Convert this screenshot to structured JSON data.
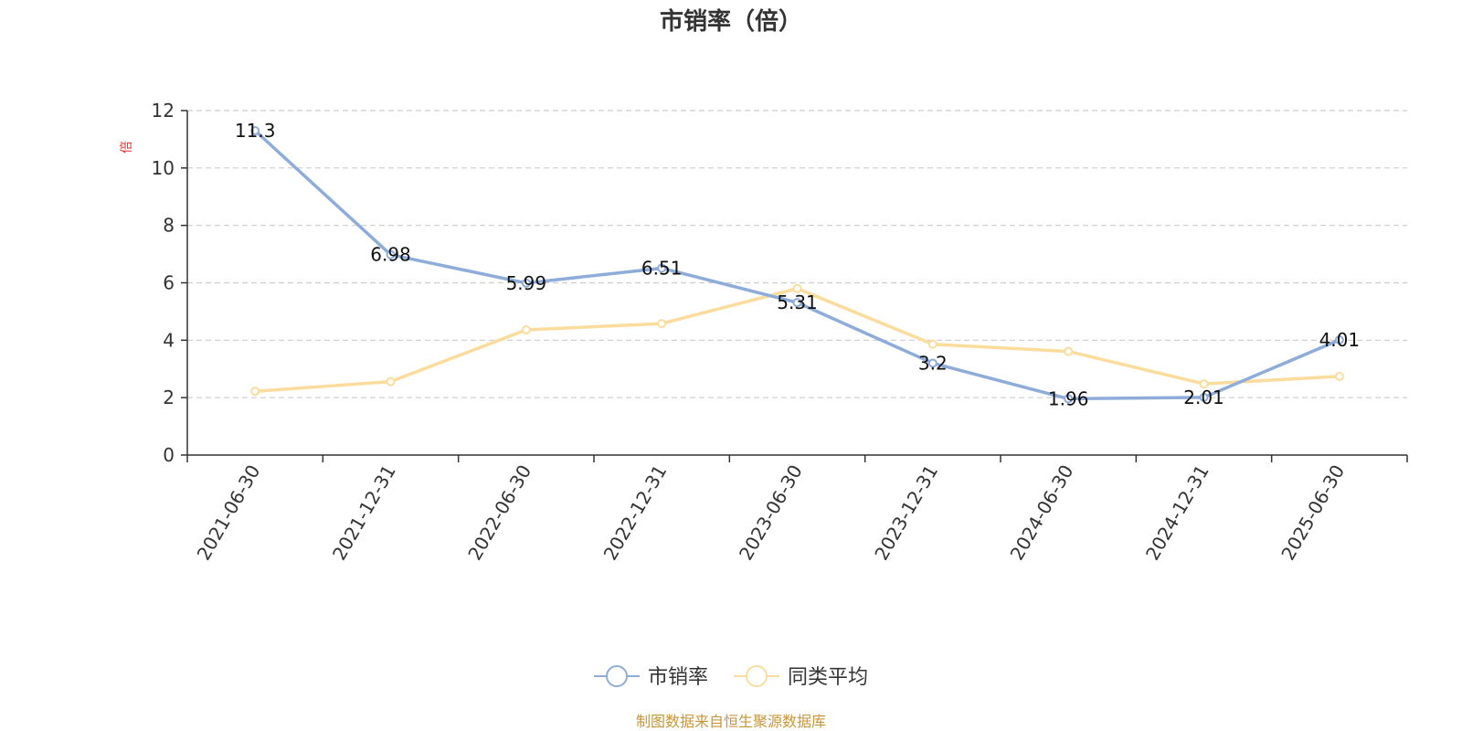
{
  "chart_data": {
    "type": "line",
    "title": "市销率（倍）",
    "ylabel": "倍",
    "ylim": [
      0,
      12
    ],
    "yticks": [
      0,
      2,
      4,
      6,
      8,
      10,
      12
    ],
    "categories": [
      "2021-06-30",
      "2021-12-31",
      "2022-06-30",
      "2022-12-31",
      "2023-06-30",
      "2023-12-31",
      "2024-06-30",
      "2024-12-31",
      "2025-06-30"
    ],
    "series": [
      {
        "name": "市销率",
        "color": "#8eacd9",
        "values": [
          11.3,
          6.98,
          5.99,
          6.51,
          5.31,
          3.2,
          1.96,
          2.01,
          4.01
        ],
        "labels": [
          "11.3",
          "6.98",
          "5.99",
          "6.51",
          "5.31",
          "3.2",
          "1.96",
          "2.01",
          "4.01"
        ]
      },
      {
        "name": "同类平均",
        "color": "#fcdc9c",
        "values": [
          2.22,
          2.56,
          4.36,
          4.58,
          5.8,
          3.86,
          3.61,
          2.48,
          2.74
        ]
      }
    ],
    "grid": true,
    "legend_position": "bottom-center",
    "source": "制图数据来自恒生聚源数据库"
  }
}
